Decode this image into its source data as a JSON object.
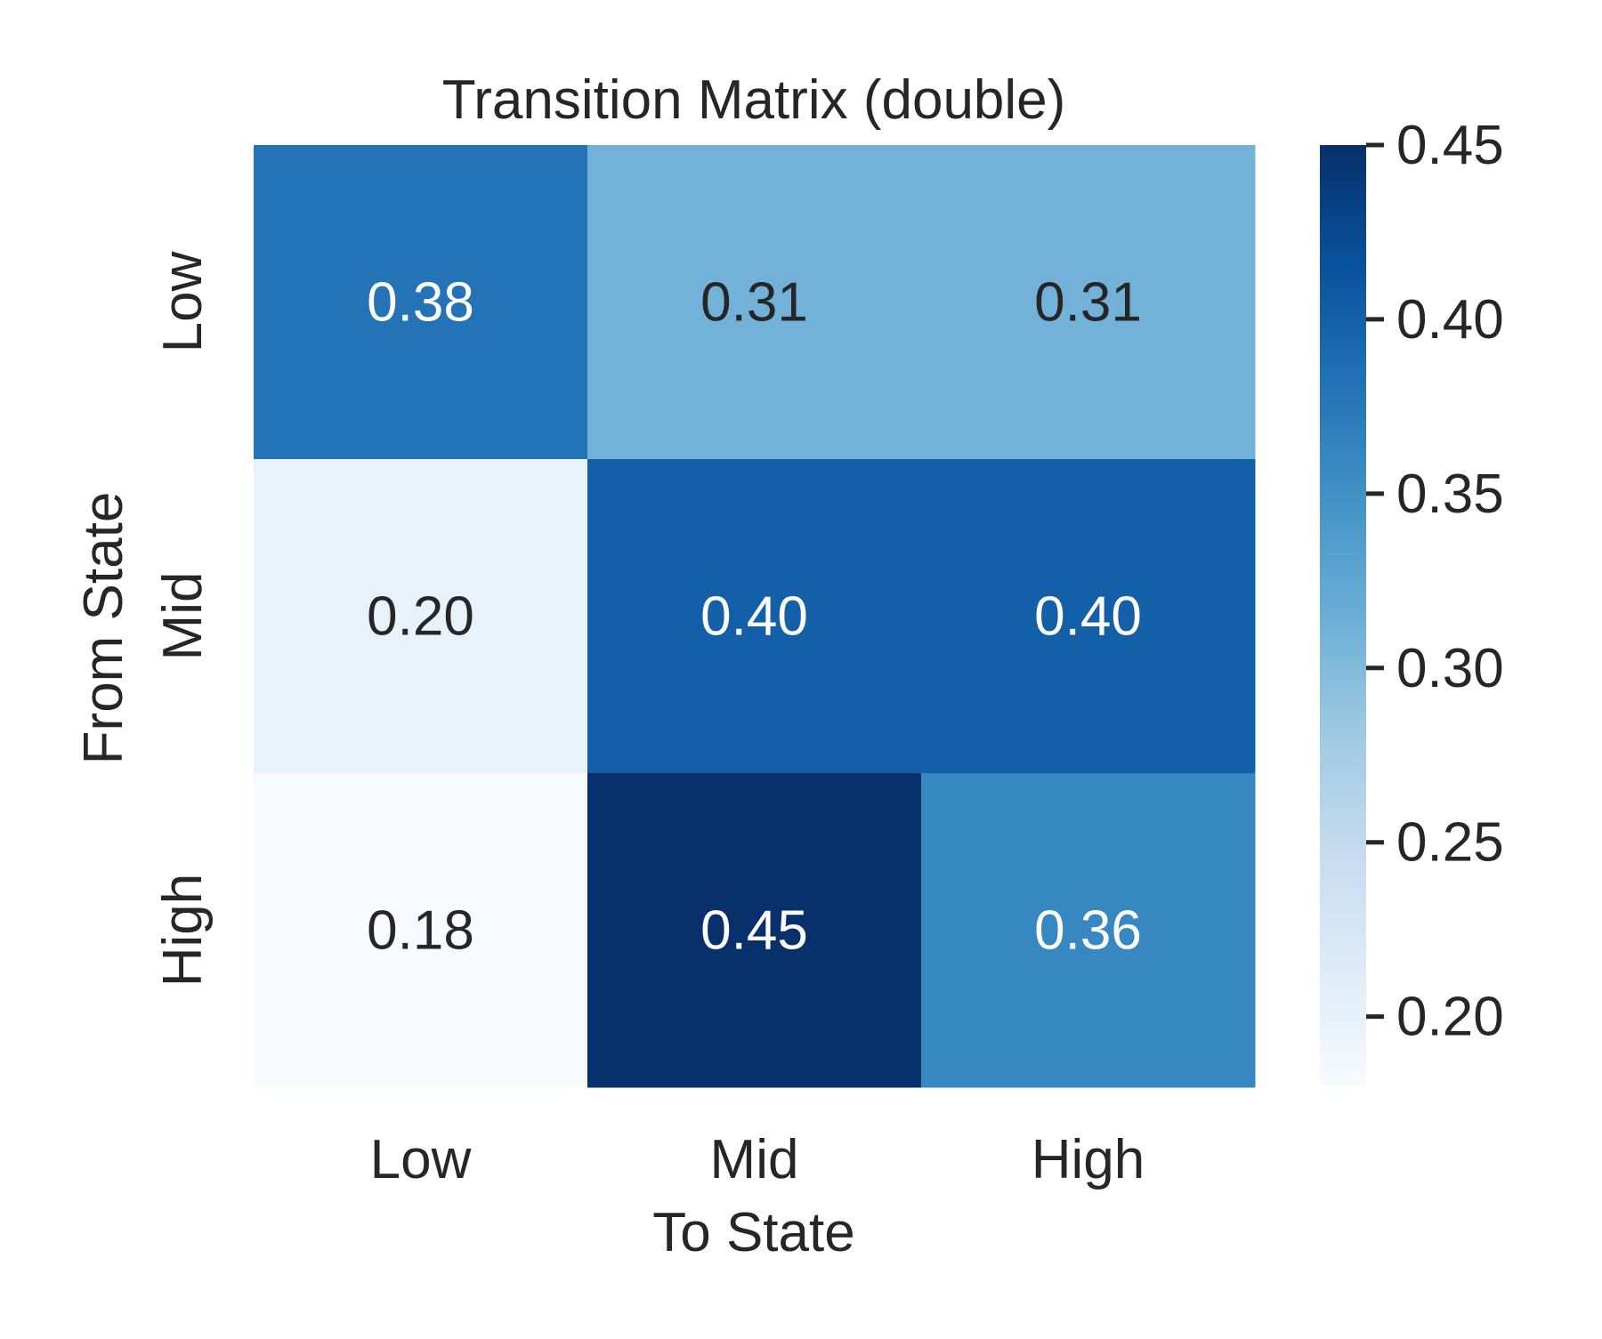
{
  "chart_data": {
    "type": "heatmap",
    "title": "Transition Matrix (double)",
    "xlabel": "To State",
    "ylabel": "From State",
    "x_categories": [
      "Low",
      "Mid",
      "High"
    ],
    "y_categories": [
      "Low",
      "Mid",
      "High"
    ],
    "values": [
      [
        0.38,
        0.31,
        0.31
      ],
      [
        0.2,
        0.4,
        0.4
      ],
      [
        0.18,
        0.45,
        0.36
      ]
    ],
    "annotations": [
      [
        "0.38",
        "0.31",
        "0.31"
      ],
      [
        "0.20",
        "0.40",
        "0.40"
      ],
      [
        "0.18",
        "0.45",
        "0.36"
      ]
    ],
    "colormap": "Blues",
    "colorbar": {
      "range": [
        0.18,
        0.45
      ],
      "ticks": [
        0.2,
        0.25,
        0.3,
        0.35,
        0.4,
        0.45
      ],
      "tick_labels": [
        "0.20",
        "0.25",
        "0.30",
        "0.35",
        "0.40",
        "0.45"
      ]
    },
    "colors": {
      "text_dark": "#262626",
      "text_light": "#ffffff"
    }
  }
}
